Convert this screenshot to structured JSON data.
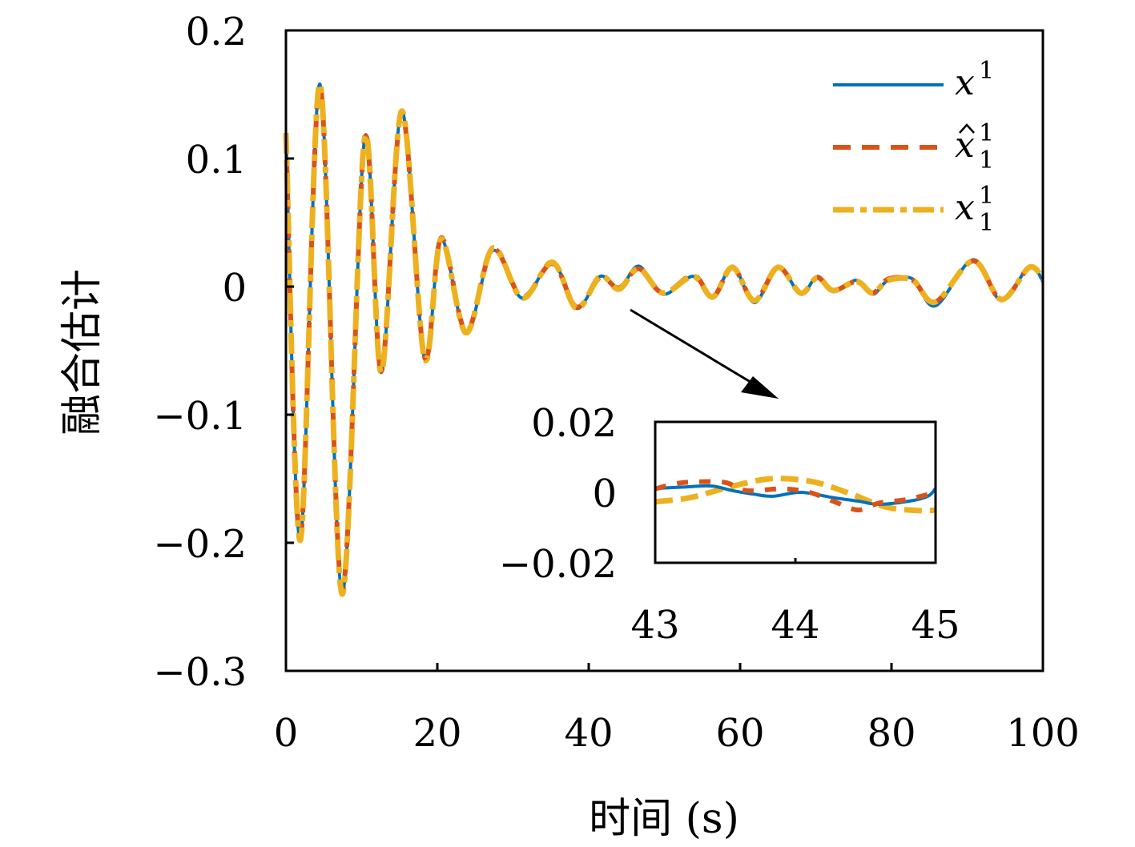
{
  "chart_data": {
    "type": "line",
    "xlabel": "时间 (s)",
    "ylabel": "融合估计",
    "xlim": [
      0,
      100
    ],
    "ylim": [
      -0.3,
      0.2
    ],
    "xticks": [
      "0",
      "20",
      "40",
      "60",
      "80",
      "100"
    ],
    "yticks": [
      "0.2",
      "0.1",
      "0",
      "−0.1",
      "−0.2",
      "−0.3"
    ],
    "grid": false,
    "legend_position": "top-right",
    "colors": {
      "x": "#0072BD",
      "xhat": "#D95319",
      "xfused": "#EDB120"
    },
    "legend": [
      {
        "base": "x",
        "sup": "1",
        "sub": "",
        "hat": false
      },
      {
        "base": "x",
        "sup": "1",
        "sub": "1",
        "hat": true
      },
      {
        "base": "x",
        "sup": "1",
        "sub": "1",
        "hat": false
      }
    ],
    "main": {
      "x": [
        0,
        1.9,
        4.5,
        7.4,
        10.4,
        12.6,
        15.3,
        18.3,
        20.5,
        23.8,
        27.3,
        31.2,
        35.2,
        38.4,
        41.5,
        44,
        46.6,
        49.8,
        53.8,
        56.4,
        59,
        61.9,
        65,
        68,
        70.2,
        72.3,
        75.4,
        77.5,
        79.6,
        82.8,
        85.8,
        90.8,
        94.5,
        98.2,
        100
      ],
      "series": [
        {
          "name": "x^1",
          "y": [
            0.119,
            -0.198,
            0.158,
            -0.24,
            0.116,
            -0.067,
            0.137,
            -0.056,
            0.037,
            -0.036,
            0.028,
            -0.009,
            0.019,
            -0.017,
            0.008,
            -0.002,
            0.016,
            -0.006,
            0.008,
            -0.009,
            0.016,
            -0.0125,
            0.016,
            -0.006,
            0.008,
            -0.004,
            0.005,
            -0.006,
            0.005,
            0.006,
            -0.015,
            0.021,
            -0.011,
            0.016,
            0.004
          ]
        },
        {
          "name": "x̂^1_1",
          "y": [
            0.119,
            -0.197,
            0.157,
            -0.238,
            0.115,
            -0.066,
            0.136,
            -0.055,
            0.038,
            -0.035,
            0.029,
            -0.008,
            0.018,
            -0.016,
            0.007,
            -0.001,
            0.014,
            -0.005,
            0.009,
            -0.008,
            0.015,
            -0.011,
            0.015,
            -0.005,
            0.007,
            -0.003,
            0.004,
            -0.005,
            0.006,
            0.005,
            -0.012,
            0.02,
            -0.01,
            0.015,
            0.006
          ]
        },
        {
          "name": "x^1_1",
          "y": [
            0.12,
            -0.198,
            0.158,
            -0.24,
            0.116,
            -0.067,
            0.137,
            -0.056,
            0.037,
            -0.036,
            0.03,
            -0.009,
            0.019,
            -0.017,
            0.008,
            -0.002,
            0.014,
            -0.005,
            0.008,
            -0.008,
            0.015,
            -0.011,
            0.015,
            -0.005,
            0.007,
            -0.003,
            0.004,
            -0.005,
            0.005,
            0.005,
            -0.012,
            0.02,
            -0.01,
            0.015,
            0.006
          ]
        }
      ]
    },
    "inset": {
      "xlim": [
        43,
        45
      ],
      "ylim": [
        -0.02,
        0.02
      ],
      "xticks": [
        "43",
        "44",
        "45"
      ],
      "yticks": [
        "0.02",
        "0",
        "−0.02"
      ],
      "series": [
        {
          "name": "x^1",
          "x": [
            43,
            43.2,
            43.4,
            43.55,
            43.7,
            43.84,
            44.04,
            44.27,
            44.45,
            44.6,
            44.84,
            44.95,
            45
          ],
          "y": [
            0.0011,
            0.0015,
            0.0018,
            0.0005,
            -0.0005,
            -0.0011,
            0.0,
            -0.0015,
            -0.0025,
            -0.0034,
            -0.0023,
            -0.001,
            0.0011
          ]
        },
        {
          "name": "x̂^1_1",
          "x": [
            43,
            43.15,
            43.3,
            43.5,
            43.65,
            43.9,
            44.1,
            44.3,
            44.45,
            44.6,
            44.8,
            45
          ],
          "y": [
            0.001,
            0.0025,
            0.003,
            0.0028,
            0.0005,
            0.001,
            0.0,
            -0.003,
            -0.005,
            -0.003,
            -0.002,
            0.0
          ]
        },
        {
          "name": "x^1_1",
          "x": [
            43,
            43.25,
            43.5,
            43.75,
            43.93,
            44.15,
            44.4,
            44.65,
            44.9,
            45
          ],
          "y": [
            -0.0027,
            -0.0015,
            0.0012,
            0.0035,
            0.0039,
            0.0028,
            -0.0005,
            -0.0042,
            -0.0052,
            -0.005
          ]
        }
      ]
    }
  }
}
